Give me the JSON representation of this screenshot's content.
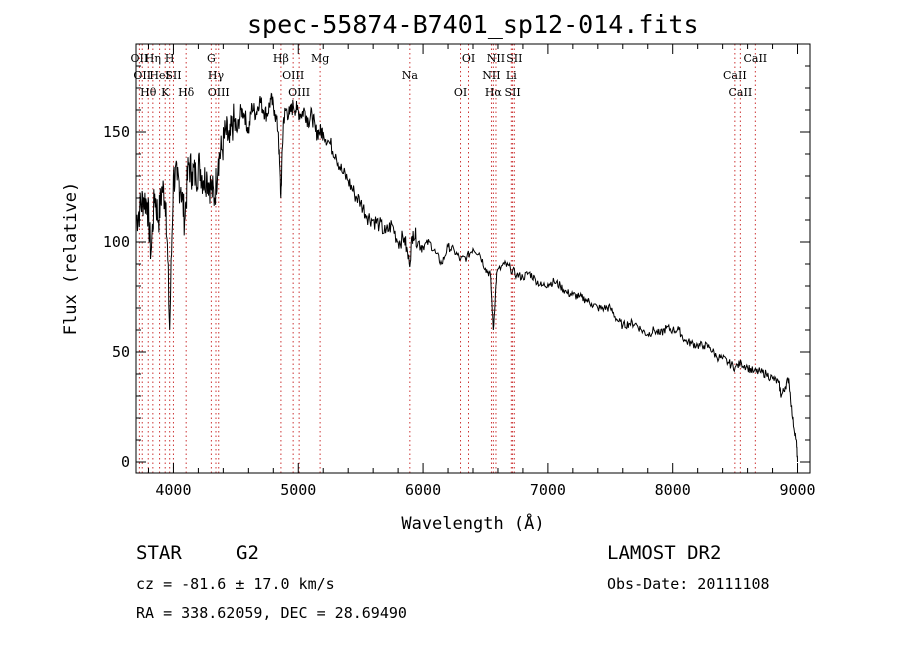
{
  "chart_data": {
    "type": "line",
    "title": "spec-55874-B7401_sp12-014.fits",
    "xlabel": "Wavelength (Å)",
    "ylabel": "Flux (relative)",
    "xlim": [
      3700,
      9100
    ],
    "ylim": [
      -5,
      190
    ],
    "xticks": [
      4000,
      5000,
      6000,
      7000,
      8000,
      9000
    ],
    "yticks": [
      0,
      50,
      100,
      150
    ],
    "grid": false,
    "series": [
      {
        "x": [
          3700,
          3730,
          3760,
          3790,
          3820,
          3850,
          3880,
          3910,
          3940,
          3970,
          4000,
          4030,
          4060,
          4090,
          4120,
          4150,
          4180,
          4210,
          4240,
          4270,
          4300,
          4330,
          4360,
          4390,
          4420,
          4450,
          4480,
          4510,
          4540,
          4570,
          4600,
          4630,
          4660,
          4690,
          4720,
          4750,
          4780,
          4810,
          4840,
          4860,
          4880,
          4900,
          4930,
          4960,
          4990,
          5020,
          5050,
          5080,
          5110,
          5140,
          5170,
          5200,
          5250,
          5300,
          5350,
          5400,
          5450,
          5500,
          5550,
          5600,
          5650,
          5700,
          5750,
          5800,
          5850,
          5890,
          5920,
          5960,
          6000,
          6050,
          6100,
          6150,
          6200,
          6250,
          6300,
          6350,
          6400,
          6450,
          6500,
          6540,
          6563,
          6590,
          6650,
          6700,
          6750,
          6800,
          6850,
          6900,
          6950,
          7000,
          7050,
          7100,
          7150,
          7200,
          7250,
          7300,
          7350,
          7400,
          7450,
          7500,
          7550,
          7600,
          7650,
          7700,
          7750,
          7800,
          7850,
          7900,
          7950,
          8000,
          8050,
          8100,
          8150,
          8200,
          8250,
          8300,
          8350,
          8400,
          8450,
          8500,
          8550,
          8600,
          8650,
          8700,
          8750,
          8800,
          8850,
          8870,
          8900,
          8930,
          8960,
          8990,
          9000
        ],
        "values": [
          110,
          115,
          120,
          118,
          95,
          122,
          110,
          125,
          118,
          60,
          130,
          128,
          125,
          110,
          135,
          132,
          130,
          135,
          128,
          130,
          125,
          120,
          138,
          142,
          150,
          145,
          155,
          150,
          160,
          158,
          150,
          162,
          158,
          165,
          160,
          158,
          165,
          160,
          150,
          120,
          155,
          160,
          158,
          162,
          160,
          158,
          160,
          155,
          158,
          150,
          150,
          150,
          145,
          140,
          132,
          128,
          122,
          118,
          112,
          110,
          108,
          104,
          108,
          100,
          102,
          90,
          105,
          100,
          98,
          100,
          95,
          90,
          98,
          96,
          92,
          93,
          97,
          95,
          88,
          85,
          60,
          86,
          90,
          88,
          85,
          84,
          86,
          83,
          80,
          81,
          82,
          80,
          77,
          76,
          75,
          74,
          72,
          70,
          70,
          70,
          65,
          62,
          63,
          63,
          60,
          58,
          60,
          58,
          61,
          60,
          60,
          55,
          54,
          53,
          53,
          52,
          48,
          47,
          45,
          43,
          45,
          43,
          41,
          41,
          40,
          38,
          36,
          30,
          34,
          38,
          20,
          10,
          0
        ]
      }
    ],
    "line_marks": [
      {
        "x": 3727,
        "label": "OII"
      },
      {
        "x": 3750,
        "label": "OII"
      },
      {
        "x": 3798,
        "label": "Hθ"
      },
      {
        "x": 3835,
        "label": "Hη"
      },
      {
        "x": 3889,
        "label": "HeI"
      },
      {
        "x": 3934,
        "label": "K"
      },
      {
        "x": 3970,
        "label": "H"
      },
      {
        "x": 4000,
        "label": "SII"
      },
      {
        "x": 4102,
        "label": "Hδ"
      },
      {
        "x": 4304,
        "label": "G"
      },
      {
        "x": 4341,
        "label": "Hγ"
      },
      {
        "x": 4363,
        "label": "OIII"
      },
      {
        "x": 4861,
        "label": "Hβ"
      },
      {
        "x": 4959,
        "label": "OIII"
      },
      {
        "x": 5007,
        "label": "OIII"
      },
      {
        "x": 5175,
        "label": "Mg"
      },
      {
        "x": 5894,
        "label": "Na"
      },
      {
        "x": 6300,
        "label": "OI"
      },
      {
        "x": 6364,
        "label": "OI"
      },
      {
        "x": 6548,
        "label": "NII"
      },
      {
        "x": 6563,
        "label": "Hα"
      },
      {
        "x": 6584,
        "label": "NII"
      },
      {
        "x": 6707,
        "label": "Li"
      },
      {
        "x": 6717,
        "label": "SII"
      },
      {
        "x": 6731,
        "label": "SII"
      },
      {
        "x": 8498,
        "label": "CaII"
      },
      {
        "x": 8542,
        "label": "CaII"
      },
      {
        "x": 8662,
        "label": "CaII"
      }
    ]
  },
  "info": {
    "class": "STAR",
    "subclass": "G2",
    "survey": "LAMOST DR2",
    "cz": "cz = -81.6 ± 17.0 km/s",
    "obs_date": "Obs-Date: 20111108",
    "radec": "RA = 338.62059, DEC =  28.69490"
  },
  "colors": {
    "line_marker": "#cc3333",
    "curve": "#000000"
  }
}
